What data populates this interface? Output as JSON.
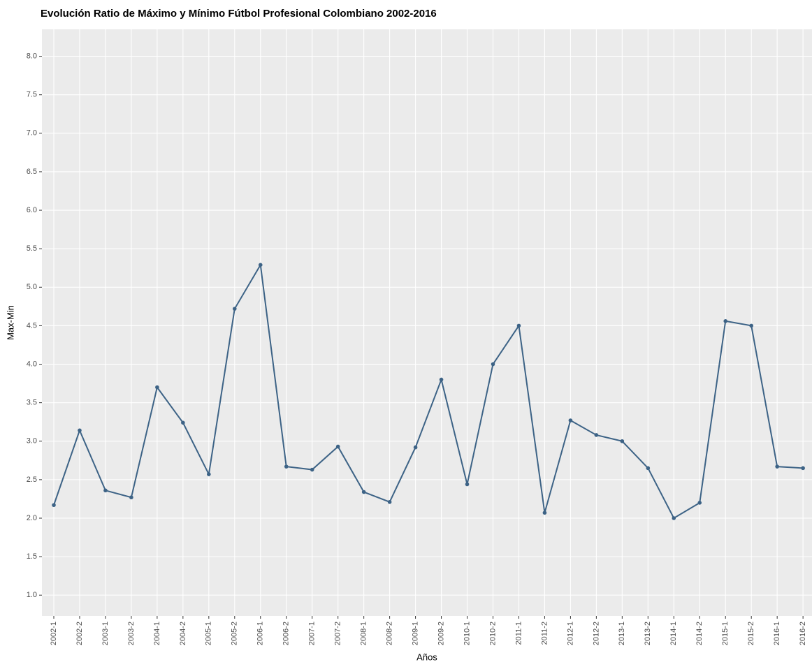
{
  "chart_data": {
    "type": "line",
    "title": "Evolución Ratio de Máximo y Mínimo Fútbol Profesional Colombiano 2002-2016",
    "x_label": "Años",
    "y_label": "Max-Min",
    "categories": [
      "2002-1",
      "2002-2",
      "2003-1",
      "2003-2",
      "2004-1",
      "2004-2",
      "2005-1",
      "2005-2",
      "2006-1",
      "2006-2",
      "2007-1",
      "2007-2",
      "2008-1",
      "2008-2",
      "2009-1",
      "2009-2",
      "2010-1",
      "2010-2",
      "2011-1",
      "2011-2",
      "2012-1",
      "2012-2",
      "2013-1",
      "2013-2",
      "2014-1",
      "2014-2",
      "2015-1",
      "2015-2",
      "2016-1",
      "2016-2"
    ],
    "series": [
      {
        "name": "Max-Min",
        "color": "#3d6386",
        "values": [
          2.17,
          3.14,
          2.36,
          2.27,
          3.7,
          3.24,
          2.57,
          4.72,
          5.29,
          2.67,
          2.63,
          2.93,
          2.34,
          2.21,
          2.92,
          3.8,
          2.44,
          4.0,
          4.5,
          2.07,
          3.27,
          3.08,
          3.0,
          2.65,
          2.0,
          2.2,
          4.56,
          4.5,
          2.67,
          2.65
        ]
      }
    ],
    "ylim": [
      0.73,
      8.35
    ],
    "yticks": [
      {
        "value": 1,
        "label": "1.0"
      },
      1.5,
      {
        "value": 2,
        "label": "2.0"
      },
      2.5,
      {
        "value": 3,
        "label": "3.0"
      },
      3.5,
      {
        "value": 4,
        "label": "4.0"
      },
      4.5,
      {
        "value": 5,
        "label": "5.0"
      },
      5.5,
      {
        "value": 6,
        "label": "6.0"
      },
      6.5,
      {
        "value": 7,
        "label": "7.0"
      },
      7.5,
      {
        "value": 8,
        "label": "8.0"
      }
    ],
    "grid": true
  }
}
